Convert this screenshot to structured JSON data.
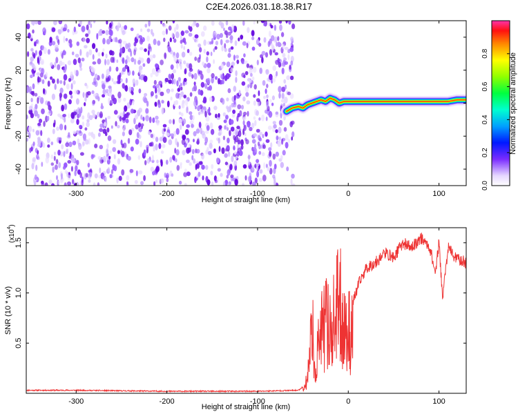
{
  "title": "C2E4.2026.031.18.38.R17",
  "chart_data": [
    {
      "type": "heatmap",
      "name": "spectrogram",
      "xlabel": "Height of straight line (km)",
      "ylabel": "Frequency (Hz)",
      "xlim": [
        -355,
        130
      ],
      "ylim": [
        -50,
        50
      ],
      "xticks": [
        -300,
        -200,
        -100,
        0,
        100
      ],
      "yticks": [
        -40,
        -20,
        0,
        20,
        40
      ],
      "noise_region_x": [
        -355,
        -65
      ],
      "signal_line": {
        "x": [
          -68,
          -62,
          -55,
          -50,
          -45,
          -40,
          -35,
          -30,
          -25,
          -20,
          -15,
          -10,
          -5,
          0,
          20,
          40,
          60,
          80,
          100,
          110,
          120,
          130
        ],
        "freq": [
          -5,
          -3,
          -2,
          -3,
          -1,
          0,
          1,
          2,
          1,
          3,
          2,
          0,
          1,
          1,
          1,
          1,
          1,
          1,
          1,
          1,
          2,
          2
        ]
      }
    },
    {
      "type": "colorbar",
      "label": "Normalized spectral amplitude",
      "range": [
        0,
        1
      ],
      "ticks": [
        0.0,
        0.2,
        0.4,
        0.6,
        0.8
      ],
      "tick_labels": [
        "0.0",
        "0.2",
        "0.4",
        "0.6",
        "0.8"
      ]
    },
    {
      "type": "line",
      "name": "snr",
      "xlabel": "Height of straight line (km)",
      "ylabel": "SNR (10 * v/v)",
      "scale_label": "(x10",
      "scale_exp": "4",
      "xlim": [
        -355,
        130
      ],
      "ylim": [
        0,
        1.65
      ],
      "xticks": [
        -300,
        -200,
        -100,
        0,
        100
      ],
      "yticks": [
        0.5,
        1.0,
        1.5
      ],
      "ytick_labels": [
        "0.5",
        "1.0",
        "1.5"
      ],
      "color": "#ee3333",
      "series": [
        {
          "x": -355,
          "y": 0.03
        },
        {
          "x": -300,
          "y": 0.03
        },
        {
          "x": -200,
          "y": 0.02
        },
        {
          "x": -100,
          "y": 0.02
        },
        {
          "x": -55,
          "y": 0.03
        },
        {
          "x": -48,
          "y": 0.08
        },
        {
          "x": -45,
          "y": 0.25
        },
        {
          "x": -42,
          "y": 0.55
        },
        {
          "x": -40,
          "y": 1.55
        },
        {
          "x": -38,
          "y": 0.2
        },
        {
          "x": -32,
          "y": 0.75
        },
        {
          "x": -25,
          "y": 1.0
        },
        {
          "x": -18,
          "y": 0.9
        },
        {
          "x": -10,
          "y": 1.3
        },
        {
          "x": -3,
          "y": 0.85
        },
        {
          "x": 5,
          "y": 0.9
        },
        {
          "x": 12,
          "y": 1.1
        },
        {
          "x": 20,
          "y": 1.25
        },
        {
          "x": 30,
          "y": 1.3
        },
        {
          "x": 40,
          "y": 1.4
        },
        {
          "x": 50,
          "y": 1.35
        },
        {
          "x": 60,
          "y": 1.5
        },
        {
          "x": 70,
          "y": 1.45
        },
        {
          "x": 80,
          "y": 1.55
        },
        {
          "x": 90,
          "y": 1.45
        },
        {
          "x": 96,
          "y": 1.2
        },
        {
          "x": 100,
          "y": 1.5
        },
        {
          "x": 104,
          "y": 0.95
        },
        {
          "x": 110,
          "y": 1.45
        },
        {
          "x": 118,
          "y": 1.35
        },
        {
          "x": 130,
          "y": 1.3
        }
      ]
    }
  ]
}
